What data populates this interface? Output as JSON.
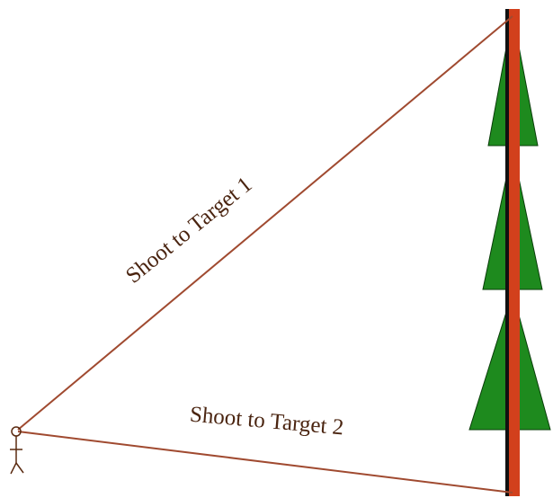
{
  "labels": {
    "target1": "Shoot to Target 1",
    "target2": "Shoot to Target 2"
  }
}
